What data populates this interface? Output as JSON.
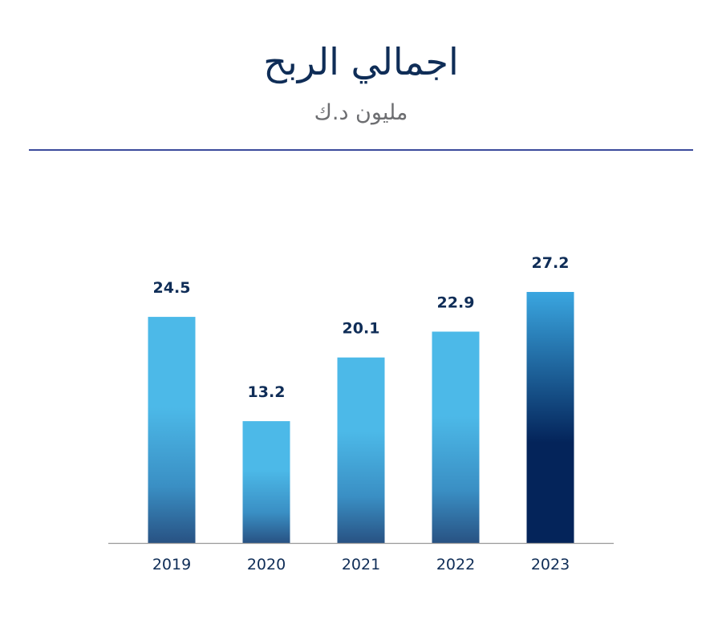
{
  "header": {
    "title": "اجمالي الربح",
    "subtitle": "مليون د.ك"
  },
  "colors": {
    "bar_top": "#4cb9e8",
    "bar_mid": "#3a8fc4",
    "bar_bottom": "#285283",
    "highlight_top": "#3aa6e0",
    "highlight_bottom": "#04245a",
    "label": "#0f2d57",
    "axis": "#9a9a9a",
    "divider": "#3b4a9b"
  },
  "chart_data": {
    "type": "bar",
    "title": "اجمالي الربح",
    "subtitle": "مليون د.ك",
    "categories": [
      "2019",
      "2020",
      "2021",
      "2022",
      "2023"
    ],
    "values": [
      24.5,
      13.2,
      20.1,
      22.9,
      27.2
    ],
    "value_labels": [
      "24.5",
      "13.2",
      "20.1",
      "22.9",
      "27.2"
    ],
    "highlight_index": 4,
    "xlabel": "",
    "ylabel": "",
    "ylim": [
      0,
      27.2
    ],
    "grid": false,
    "legend": "none"
  }
}
